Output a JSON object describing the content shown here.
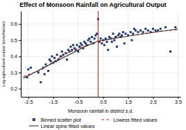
{
  "chart_data": {
    "type": "scatter",
    "title": "Effect of Monsoon Rainfall on Agricultural Output",
    "xlabel": "Monsoon rainfall in district s.d.",
    "ylabel": "Log agricultural output (tons/hectar)",
    "xlim": [
      -2.8,
      3.6
    ],
    "ylim": [
      0.15,
      0.68
    ],
    "xticks": [
      -2.5,
      -1.5,
      -0.5,
      0.5,
      1.5,
      2.5,
      3.5
    ],
    "yticks": [
      0.2,
      0.3,
      0.4,
      0.5,
      0.6
    ],
    "grid": true,
    "legend": "bottom",
    "vline": {
      "x": 0.3,
      "color": "red"
    },
    "series": [
      {
        "name": "Binned scatter plot",
        "type": "scatter",
        "color": "#1a3a6e",
        "marker": "square",
        "x": [
          -2.55,
          -2.5,
          -2.4,
          -2.1,
          -2.0,
          -1.9,
          -1.85,
          -1.8,
          -1.7,
          -1.65,
          -1.6,
          -1.55,
          -1.5,
          -1.45,
          -1.4,
          -1.35,
          -1.3,
          -1.2,
          -1.15,
          -1.1,
          -1.0,
          -0.95,
          -0.9,
          -0.85,
          -0.8,
          -0.75,
          -0.7,
          -0.65,
          -0.6,
          -0.55,
          -0.5,
          -0.45,
          -0.4,
          -0.35,
          -0.3,
          -0.25,
          -0.2,
          -0.15,
          -0.1,
          -0.05,
          0.0,
          0.05,
          0.1,
          0.15,
          0.2,
          0.25,
          0.3,
          0.35,
          0.4,
          0.45,
          0.5,
          0.55,
          0.6,
          0.65,
          0.7,
          0.75,
          0.8,
          0.85,
          0.9,
          0.95,
          1.0,
          1.05,
          1.1,
          1.15,
          1.2,
          1.25,
          1.3,
          1.35,
          1.4,
          1.5,
          1.6,
          1.65,
          1.7,
          1.75,
          1.8,
          1.9,
          2.0,
          2.1,
          2.2,
          2.3,
          2.4,
          2.5,
          2.6,
          2.7,
          2.8,
          3.0,
          3.2,
          3.4
        ],
        "values": [
          0.27,
          0.32,
          0.33,
          0.3,
          0.24,
          0.33,
          0.29,
          0.35,
          0.31,
          0.38,
          0.37,
          0.4,
          0.36,
          0.39,
          0.37,
          0.41,
          0.38,
          0.4,
          0.43,
          0.41,
          0.42,
          0.38,
          0.44,
          0.43,
          0.46,
          0.44,
          0.47,
          0.45,
          0.44,
          0.47,
          0.43,
          0.46,
          0.48,
          0.47,
          0.45,
          0.49,
          0.48,
          0.47,
          0.5,
          0.51,
          0.49,
          0.52,
          0.48,
          0.51,
          0.53,
          0.54,
          0.63,
          0.49,
          0.51,
          0.48,
          0.5,
          0.47,
          0.51,
          0.49,
          0.44,
          0.52,
          0.51,
          0.49,
          0.54,
          0.5,
          0.52,
          0.46,
          0.53,
          0.54,
          0.52,
          0.53,
          0.55,
          0.48,
          0.54,
          0.53,
          0.55,
          0.5,
          0.54,
          0.57,
          0.56,
          0.55,
          0.56,
          0.55,
          0.57,
          0.56,
          0.55,
          0.57,
          0.56,
          0.56,
          0.57,
          0.58,
          0.43,
          0.58
        ]
      },
      {
        "name": "Lowess fitted values",
        "type": "line",
        "color": "#bb2222",
        "line_style": "dashed",
        "x": [
          -2.7,
          -2.0,
          -1.5,
          -1.0,
          -0.5,
          0.0,
          0.3,
          0.8,
          1.5,
          2.5,
          3.5
        ],
        "values": [
          0.275,
          0.315,
          0.365,
          0.415,
          0.45,
          0.475,
          0.49,
          0.51,
          0.525,
          0.55,
          0.565
        ]
      },
      {
        "name": "Linear spine fitted values",
        "type": "line",
        "color": "#444444",
        "line_style": "solid",
        "x": [
          -2.7,
          -0.3,
          0.3,
          null,
          0.3,
          1.5,
          3.5
        ],
        "values": [
          0.265,
          0.455,
          0.495,
          null,
          0.495,
          0.525,
          0.57
        ]
      }
    ]
  }
}
